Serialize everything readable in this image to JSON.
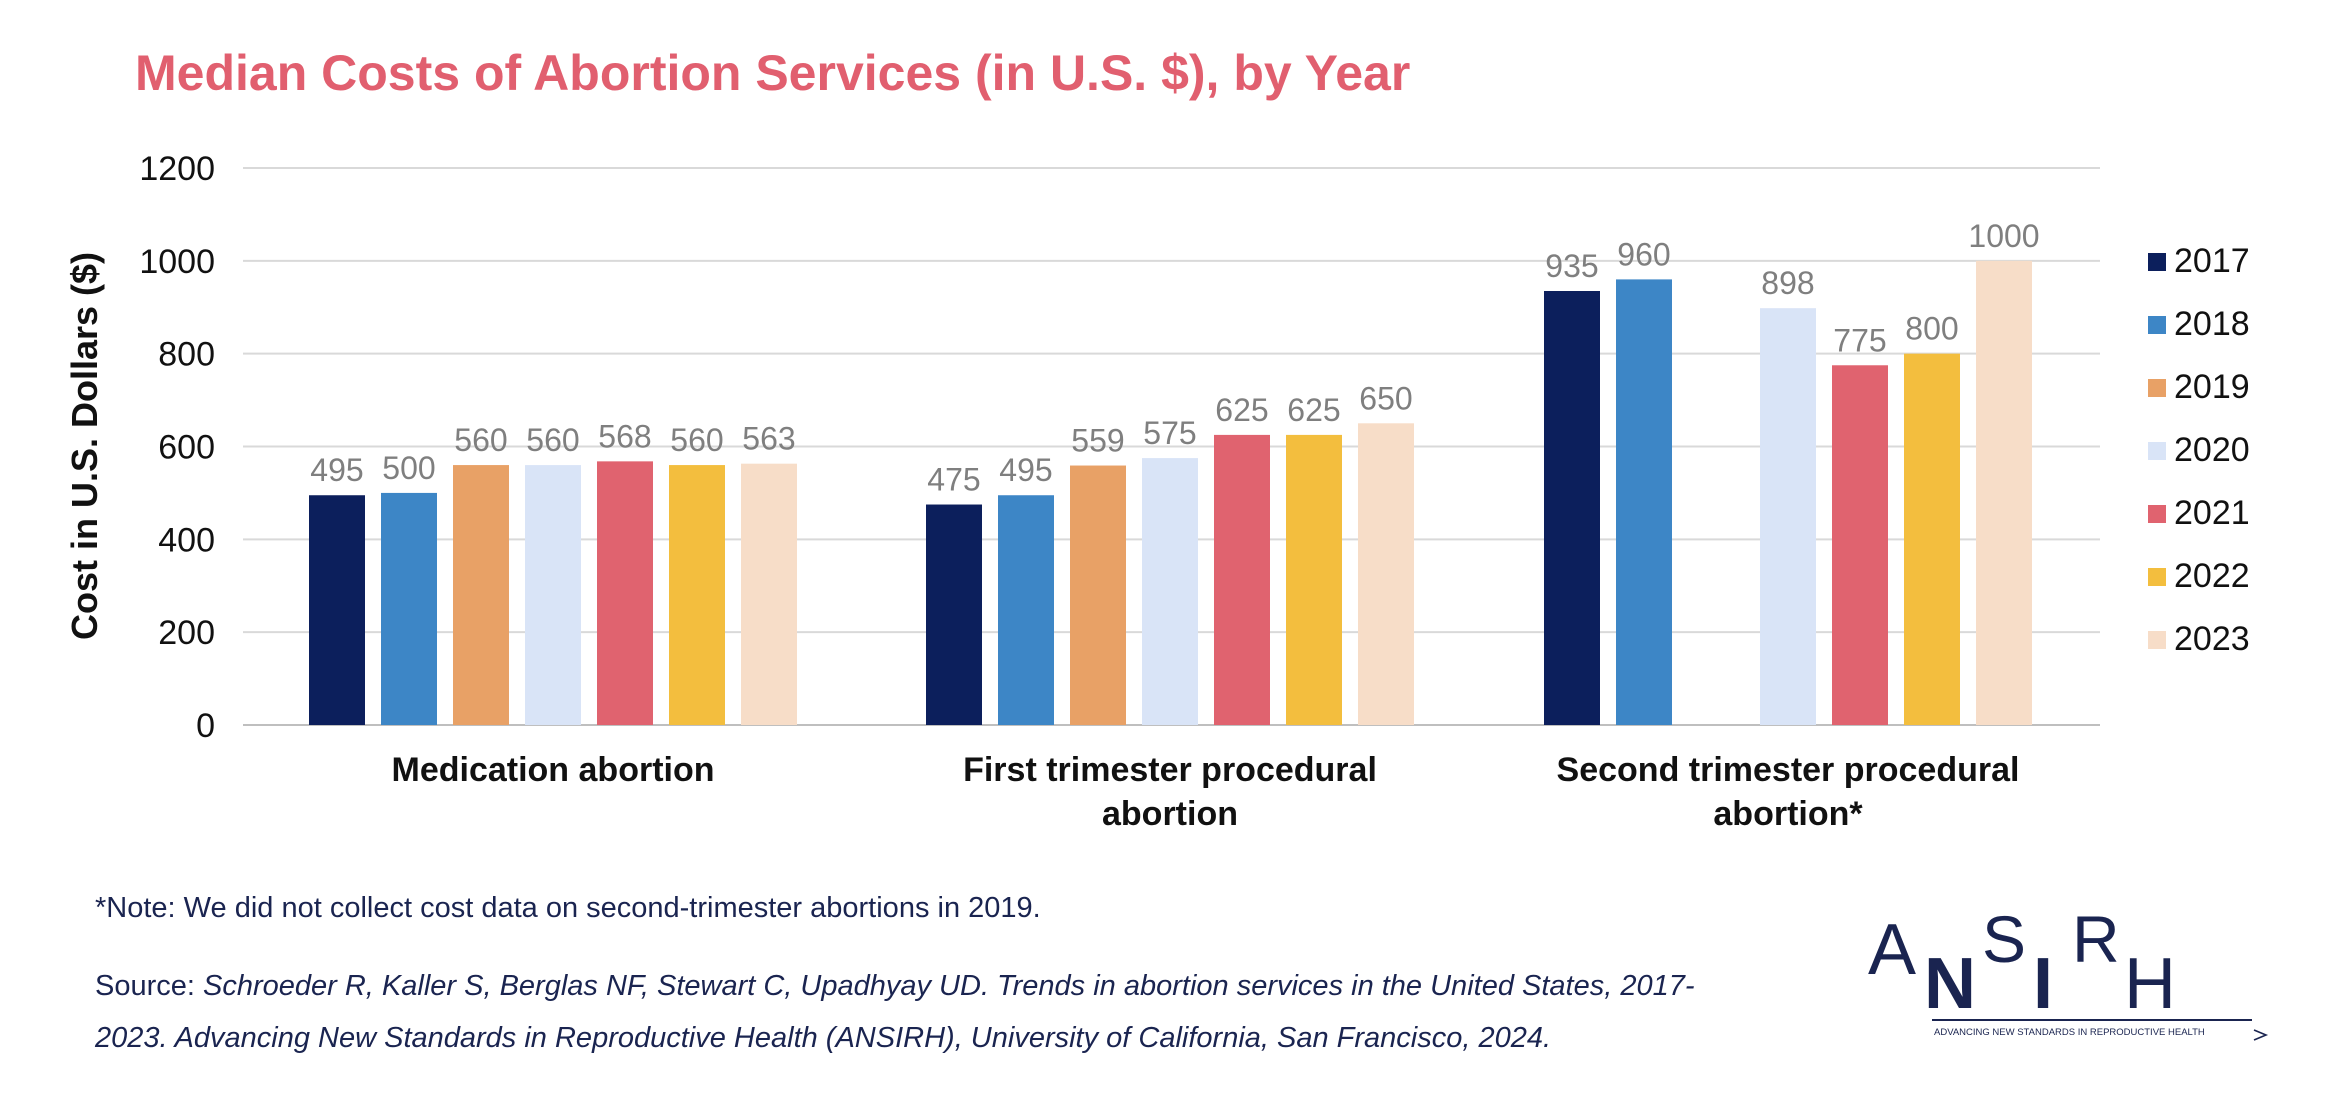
{
  "colors": {
    "title": "#e15f6f",
    "series": [
      "#0c1f5c",
      "#3d86c6",
      "#e8a166",
      "#d9e4f7",
      "#e0636f",
      "#f3be3e",
      "#f7ddc8"
    ],
    "value_label": "#7f7f7f",
    "grid": "#d9d9d9",
    "text": "#1a2450"
  },
  "chart_data": {
    "type": "bar",
    "title": "Median Costs of Abortion Services (in U.S. $), by Year",
    "ylabel": "Cost in U.S. Dollars ($)",
    "xlabel": "",
    "ylim": [
      0,
      1200
    ],
    "yticks": [
      0,
      200,
      400,
      600,
      800,
      1000,
      1200
    ],
    "grid": true,
    "legend_position": "right",
    "categories": [
      [
        "Medication abortion"
      ],
      [
        "First trimester procedural",
        "abortion"
      ],
      [
        "Second trimester procedural",
        "abortion*"
      ]
    ],
    "series": [
      {
        "name": "2017",
        "values": [
          495,
          475,
          935
        ]
      },
      {
        "name": "2018",
        "values": [
          500,
          495,
          960
        ]
      },
      {
        "name": "2019",
        "values": [
          560,
          559,
          null
        ]
      },
      {
        "name": "2020",
        "values": [
          560,
          575,
          898
        ]
      },
      {
        "name": "2021",
        "values": [
          568,
          625,
          775
        ]
      },
      {
        "name": "2022",
        "values": [
          560,
          625,
          800
        ]
      },
      {
        "name": "2023",
        "values": [
          563,
          650,
          1000
        ]
      }
    ]
  },
  "footer": {
    "note": "*Note: We did not collect cost data on second-trimester abortions in 2019.",
    "source_prefix": "Source: ",
    "source_text": "Schroeder R, Kaller S, Berglas NF, Stewart C, Upadhyay UD. Trends in abortion services in the United States, 2017-2023. Advancing New Standards in Reproductive Health (ANSIRH), University of California, San Francisco, 2024."
  },
  "logo": {
    "letters": "ANSIRH",
    "tagline": "ADVANCING NEW STANDARDS IN REPRODUCTIVE HEALTH"
  }
}
